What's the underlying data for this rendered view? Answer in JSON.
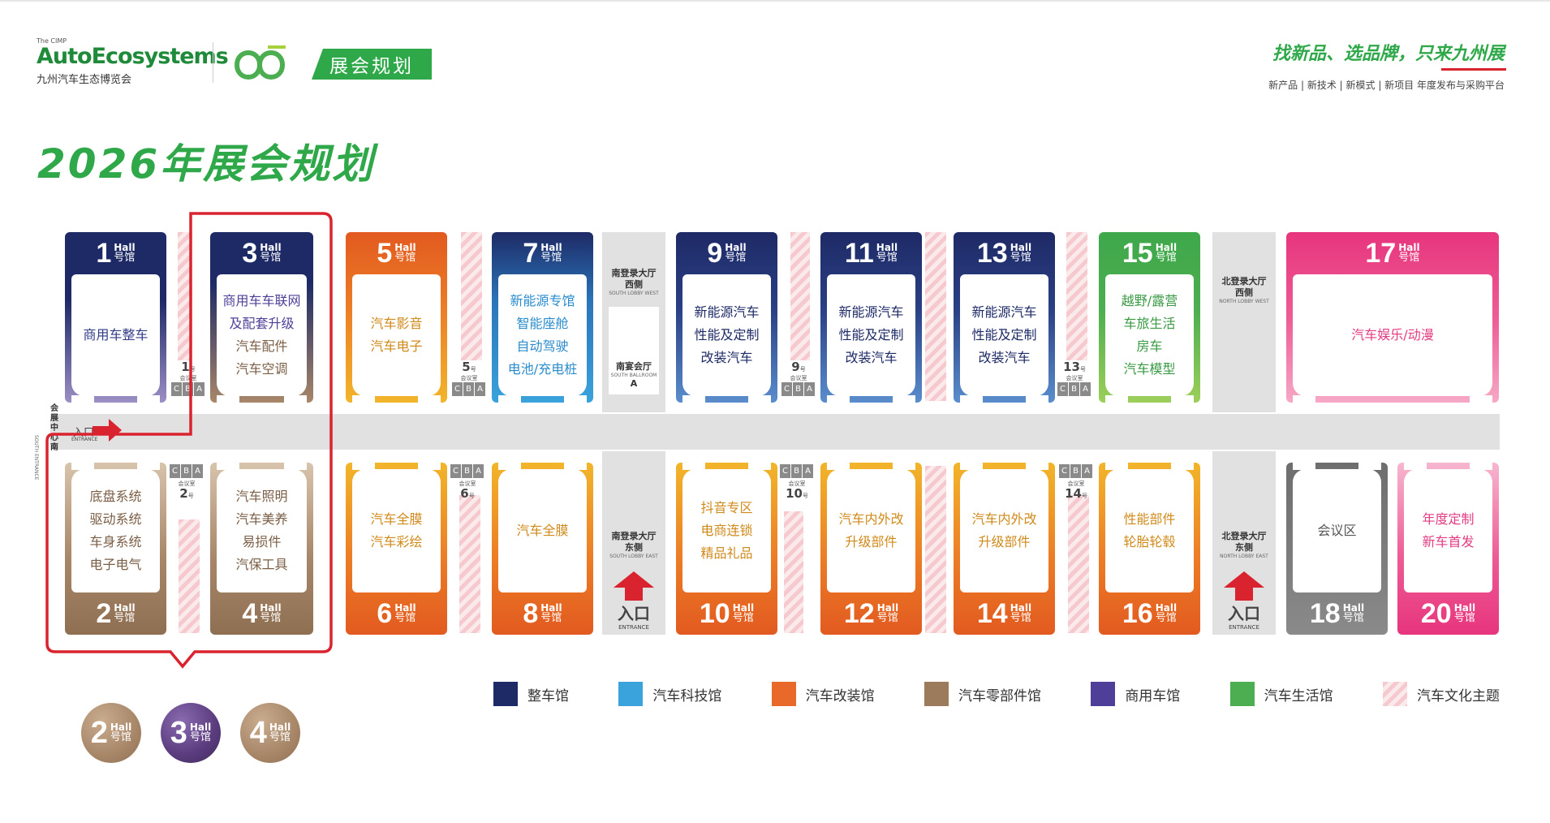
{
  "header": {
    "brand_small": "The CIMP",
    "brand_main": "AutoEcosystems",
    "brand_cn": "九州汽车生态博览会",
    "plan_tag": "展会规划",
    "slogan": "找新品、选品牌，只来九州展",
    "sub_slogan": "新产品 | 新技术 | 新模式 | 新项目 年度发布与采购平台"
  },
  "title": "2026年展会规划",
  "hall_word": "Hall",
  "hall_cn": "号馆",
  "halls": [
    {
      "num": "1",
      "lines": [
        "商用车整车"
      ]
    },
    {
      "num": "3",
      "lines": [
        "商用车车联网",
        "及配套升级",
        "汽车配件",
        "汽车空调"
      ]
    },
    {
      "num": "5",
      "lines": [
        "汽车影音",
        "汽车电子"
      ]
    },
    {
      "num": "7",
      "lines": [
        "新能源专馆",
        "智能座舱",
        "自动驾驶",
        "电池/充电桩"
      ]
    },
    {
      "num": "9",
      "lines": [
        "新能源汽车",
        "性能及定制",
        "改装汽车"
      ]
    },
    {
      "num": "11",
      "lines": [
        "新能源汽车",
        "性能及定制",
        "改装汽车"
      ]
    },
    {
      "num": "13",
      "lines": [
        "新能源汽车",
        "性能及定制",
        "改装汽车"
      ]
    },
    {
      "num": "15",
      "lines": [
        "越野/露营",
        "车旅生活",
        "房车",
        "汽车模型"
      ]
    },
    {
      "num": "17",
      "lines": [
        "汽车娱乐/动漫"
      ]
    },
    {
      "num": "2",
      "lines": [
        "底盘系统",
        "驱动系统",
        "车身系统",
        "电子电气"
      ]
    },
    {
      "num": "4",
      "lines": [
        "汽车照明",
        "汽车美养",
        "易损件",
        "汽保工具"
      ]
    },
    {
      "num": "6",
      "lines": [
        "汽车全膜",
        "汽车彩绘"
      ]
    },
    {
      "num": "8",
      "lines": [
        "汽车全膜"
      ]
    },
    {
      "num": "10",
      "lines": [
        "抖音专区",
        "电商连锁",
        "精品礼品"
      ]
    },
    {
      "num": "12",
      "lines": [
        "汽车内外改",
        "升级部件"
      ]
    },
    {
      "num": "14",
      "lines": [
        "汽车内外改",
        "升级部件"
      ]
    },
    {
      "num": "16",
      "lines": [
        "性能部件",
        "轮胎轮毂"
      ]
    },
    {
      "num": "18",
      "lines": [
        "会议区"
      ]
    },
    {
      "num": "20",
      "lines": [
        "年度定制",
        "新车首发"
      ]
    }
  ],
  "meeting_rooms": {
    "letters": [
      "C",
      "B",
      "A"
    ],
    "caption": "会议室",
    "suffix": "号",
    "rooms": [
      "1",
      "2",
      "5",
      "6",
      "9",
      "10",
      "13",
      "14"
    ]
  },
  "lobbies": {
    "south_west": {
      "cn": [
        "南登录大厅",
        "西侧"
      ],
      "en": "SOUTH LOBBY WEST"
    },
    "south_east": {
      "cn": [
        "南登录大厅",
        "东侧"
      ],
      "en": "SOUTH LOBBY EAST"
    },
    "north_west": {
      "cn": [
        "北登录大厅",
        "西侧"
      ],
      "en": "NORTH LOBBY WEST"
    },
    "north_east": {
      "cn": [
        "北登录大厅",
        "东侧"
      ],
      "en": "NORTH LOBBY EAST"
    },
    "ballroom": {
      "cn": "南宴会厅",
      "en": "SOUTH BALLROOM",
      "letter": "A"
    }
  },
  "entrance": {
    "cn": "入口",
    "en": "ENTRANCE"
  },
  "side_entrance": {
    "vertical_cn": "会展中心南",
    "vertical_en": "SOUTH ENTRANCE"
  },
  "legend": [
    {
      "label": "整车馆",
      "color": "#1e2a66"
    },
    {
      "label": "汽车科技馆",
      "color": "#3aa3dc"
    },
    {
      "label": "汽车改装馆",
      "color": "#e8692a"
    },
    {
      "label": "汽车零部件馆",
      "color": "#9c7a5c"
    },
    {
      "label": "商用车馆",
      "color": "#4f3f98"
    },
    {
      "label": "汽车生活馆",
      "color": "#4cae50"
    },
    {
      "label": "汽车文化主题",
      "color": "#f6c9cf"
    }
  ],
  "circles": [
    {
      "num": "2",
      "color": "#a88769"
    },
    {
      "num": "3",
      "color": "#5a3c7e"
    },
    {
      "num": "4",
      "color": "#a88769"
    }
  ]
}
